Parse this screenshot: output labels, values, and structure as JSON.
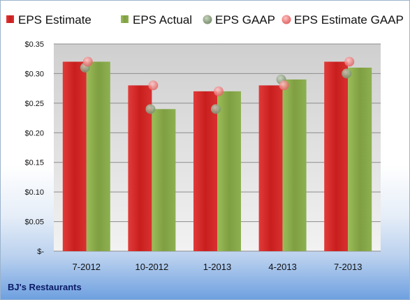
{
  "company_label": "BJ's Restaurants",
  "chart_data": {
    "type": "bar",
    "categories": [
      "7-2012",
      "10-2012",
      "1-2013",
      "4-2013",
      "7-2013"
    ],
    "series": [
      {
        "name": "EPS Estimate",
        "kind": "bar",
        "color": "#d42a2a",
        "values": [
          0.32,
          0.28,
          0.27,
          0.28,
          0.32
        ]
      },
      {
        "name": "EPS Actual",
        "kind": "bar",
        "color": "#8aaa4a",
        "values": [
          0.32,
          0.24,
          0.27,
          0.29,
          0.31
        ]
      },
      {
        "name": "EPS GAAP",
        "kind": "marker",
        "color": "#9aaa8a",
        "values": [
          0.31,
          0.24,
          0.24,
          0.29,
          0.3
        ]
      },
      {
        "name": "EPS Estimate GAAP",
        "kind": "marker",
        "color": "#f08a8a",
        "values": [
          0.32,
          0.28,
          0.27,
          0.28,
          0.32
        ]
      }
    ],
    "y_tick_labels": [
      "$-",
      "$0.05",
      "$0.10",
      "$0.15",
      "$0.20",
      "$0.25",
      "$0.30",
      "$0.35"
    ],
    "ylim": [
      0,
      0.35
    ],
    "grid": true,
    "legend_position": "top"
  }
}
